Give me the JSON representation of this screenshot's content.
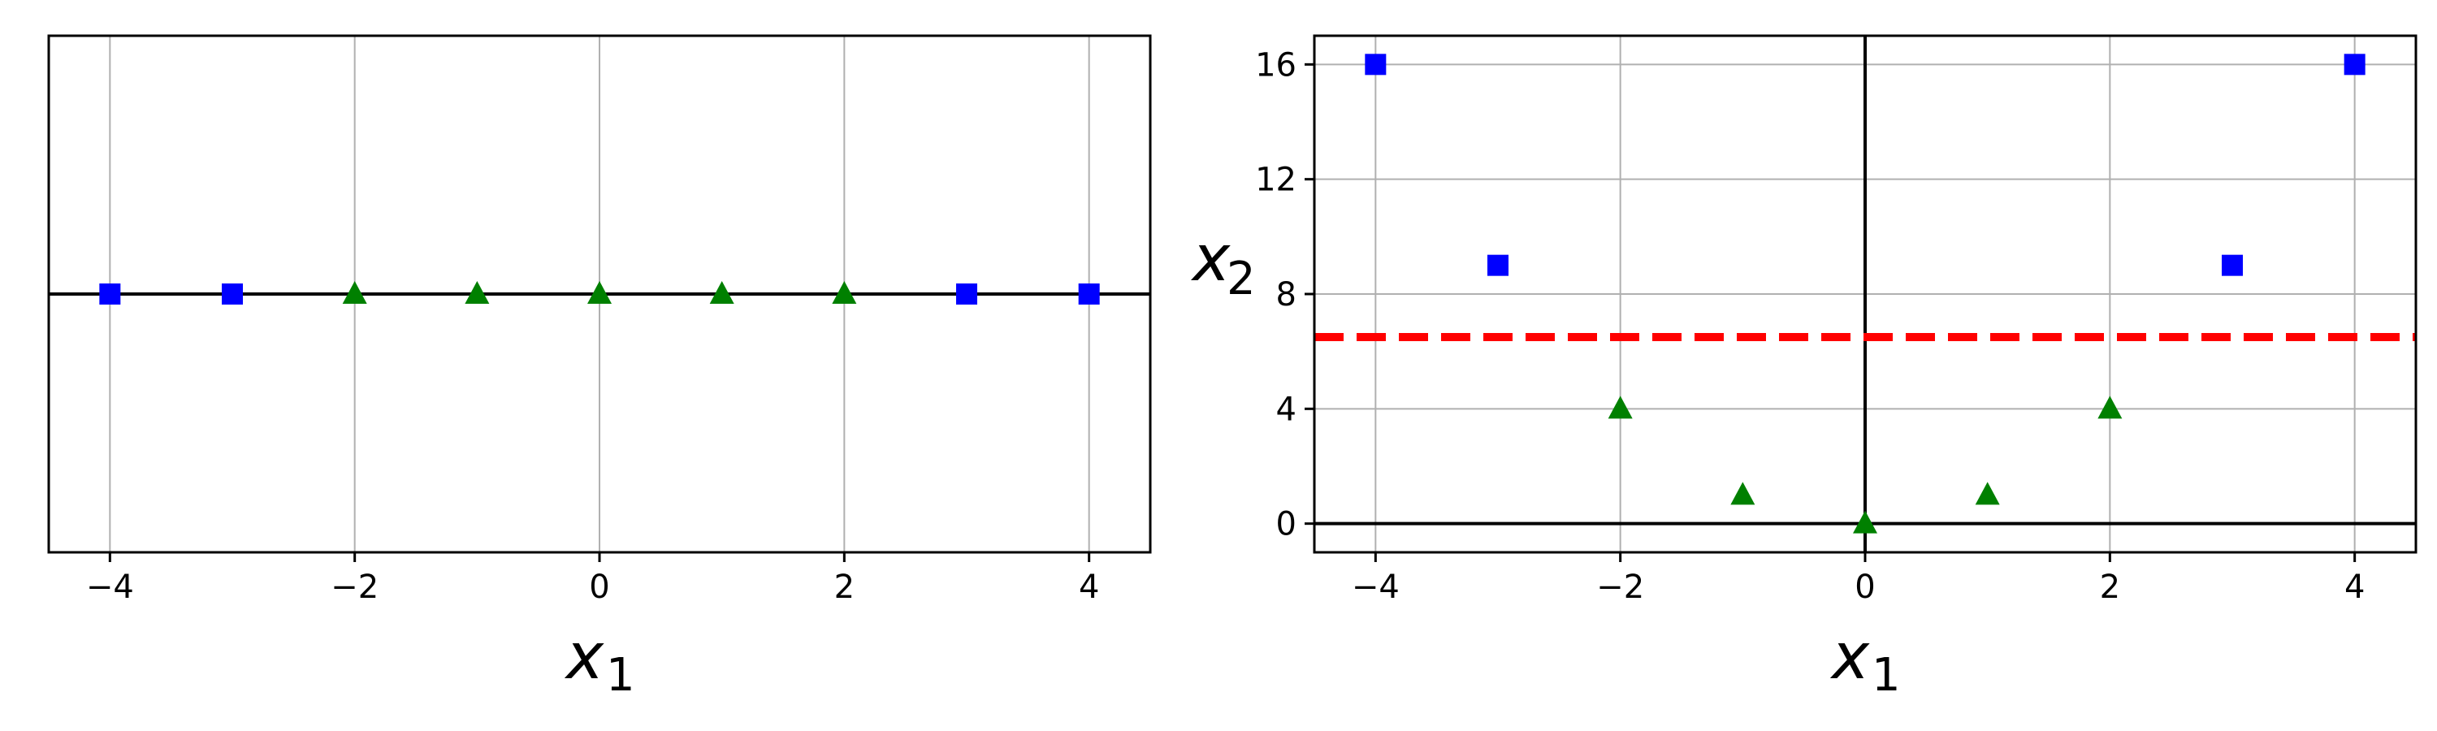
{
  "chart_data": [
    {
      "type": "scatter",
      "xlabel": "x",
      "xlabel_subscript": "1",
      "ylabel": "",
      "xlim": [
        -4.5,
        4.5
      ],
      "ylim": [
        -1,
        1
      ],
      "xticks": [
        -4,
        -2,
        0,
        2,
        4
      ],
      "yticks": [],
      "grid": true,
      "series": [
        {
          "marker": "square",
          "color": "#0000ff",
          "x": [
            -4,
            -3,
            3,
            4
          ],
          "y": [
            0,
            0,
            0,
            0
          ]
        },
        {
          "marker": "triangle",
          "color": "#008000",
          "x": [
            -2,
            -1,
            0,
            1,
            2
          ],
          "y": [
            0,
            0,
            0,
            0,
            0
          ]
        }
      ],
      "reference_lines": [
        {
          "orientation": "horizontal",
          "value": 0,
          "color": "#000000",
          "style": "solid"
        }
      ]
    },
    {
      "type": "scatter",
      "xlabel": "x",
      "xlabel_subscript": "1",
      "ylabel": "x",
      "ylabel_subscript": "2",
      "xlim": [
        -4.5,
        4.5
      ],
      "ylim": [
        -1,
        17
      ],
      "xticks": [
        -4,
        -2,
        0,
        2,
        4
      ],
      "yticks": [
        0,
        4,
        8,
        12,
        16
      ],
      "grid": true,
      "series": [
        {
          "marker": "square",
          "color": "#0000ff",
          "x": [
            -4,
            -3,
            3,
            4
          ],
          "y": [
            16,
            9,
            9,
            16
          ]
        },
        {
          "marker": "triangle",
          "color": "#008000",
          "x": [
            -2,
            -1,
            0,
            1,
            2
          ],
          "y": [
            4,
            1,
            0,
            1,
            4
          ]
        }
      ],
      "reference_lines": [
        {
          "orientation": "horizontal",
          "value": 0,
          "color": "#000000",
          "style": "solid"
        },
        {
          "orientation": "vertical",
          "value": 0,
          "color": "#000000",
          "style": "solid"
        },
        {
          "orientation": "horizontal",
          "value": 6.5,
          "color": "#ff0000",
          "style": "dashed"
        }
      ]
    }
  ]
}
